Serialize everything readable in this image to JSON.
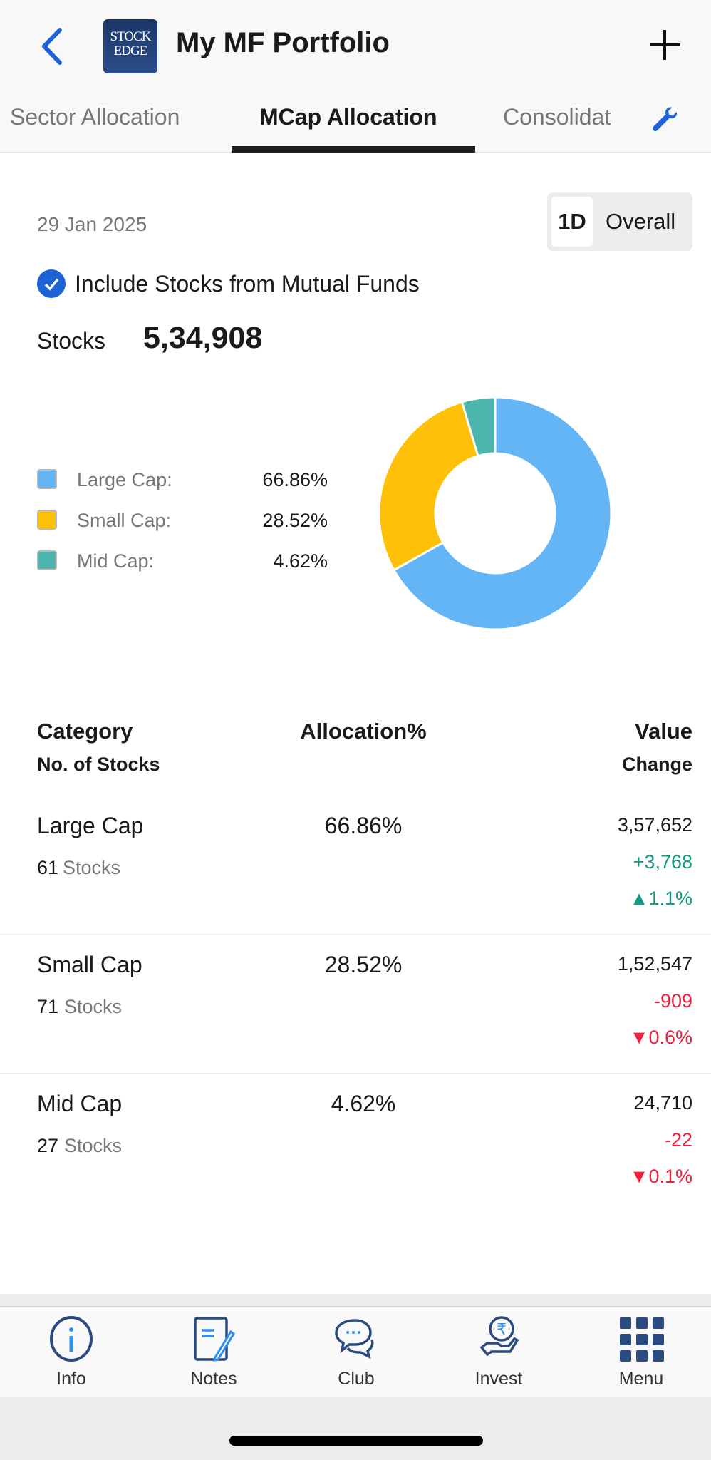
{
  "header": {
    "title": "My MF Portfolio",
    "logo_text": "STOCK EDGE"
  },
  "tabs": [
    {
      "label": "Sector Allocation"
    },
    {
      "label": "MCap Allocation",
      "active": true
    },
    {
      "label": "Consolidat"
    }
  ],
  "date": "29 Jan 2025",
  "period_toggle": {
    "options": [
      "1D",
      "Overall"
    ],
    "selected": "1D"
  },
  "include_mf": {
    "label": "Include Stocks from Mutual Funds",
    "checked": true
  },
  "stocks": {
    "label": "Stocks",
    "value": "5,34,908"
  },
  "chart_data": {
    "type": "pie",
    "donut": true,
    "categories": [
      "Large Cap",
      "Small Cap",
      "Mid Cap"
    ],
    "values": [
      66.86,
      28.52,
      4.62
    ],
    "colors": [
      "#64b5f6",
      "#ffc107",
      "#4db6ac"
    ],
    "legend": [
      {
        "label": "Large Cap:",
        "value": "66.86%"
      },
      {
        "label": "Small Cap:",
        "value": "28.52%"
      },
      {
        "label": "Mid Cap:",
        "value": "4.62%"
      }
    ]
  },
  "table": {
    "headers": {
      "category": "Category",
      "count": "No. of Stocks",
      "alloc": "Allocation%",
      "value": "Value",
      "change": "Change"
    },
    "rows": [
      {
        "category": "Large Cap",
        "count": "61",
        "count_unit": "Stocks",
        "alloc": "66.86%",
        "value": "3,57,652",
        "change": "+3,768",
        "pct": "▲1.1%",
        "dir": "up"
      },
      {
        "category": "Small Cap",
        "count": "71",
        "count_unit": "Stocks",
        "alloc": "28.52%",
        "value": "1,52,547",
        "change": "-909",
        "pct": "▼0.6%",
        "dir": "dn"
      },
      {
        "category": "Mid Cap",
        "count": "27",
        "count_unit": "Stocks",
        "alloc": "4.62%",
        "value": "24,710",
        "change": "-22",
        "pct": "▼0.1%",
        "dir": "dn"
      }
    ]
  },
  "nav": [
    {
      "label": "Info",
      "icon": "info-icon"
    },
    {
      "label": "Notes",
      "icon": "notes-icon"
    },
    {
      "label": "Club",
      "icon": "chat-icon"
    },
    {
      "label": "Invest",
      "icon": "rupee-hand-icon"
    },
    {
      "label": "Menu",
      "icon": "grid-icon"
    }
  ],
  "colors": {
    "accent": "#1e63d6",
    "up": "#149a80",
    "down": "#f0203c",
    "nav_icon": "#2a4a80"
  }
}
